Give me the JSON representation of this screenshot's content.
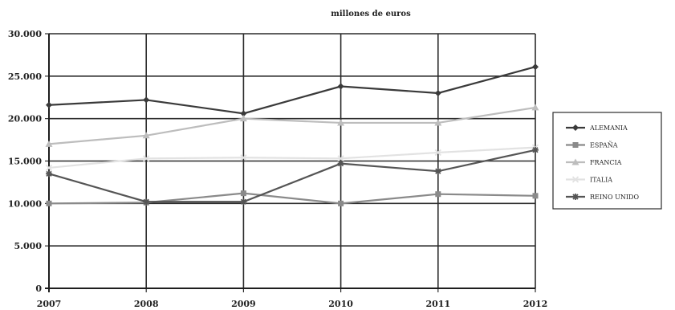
{
  "chart_data": {
    "type": "line",
    "title": "millones de euros",
    "xlabel": "",
    "ylabel": "",
    "x": [
      "2007",
      "2008",
      "2009",
      "2010",
      "2011",
      "2012"
    ],
    "ylim": [
      0,
      30000
    ],
    "yticks": [
      "0",
      "5.000",
      "10.000",
      "15.000",
      "20.000",
      "25.000",
      "30.000"
    ],
    "grid": true,
    "legend_position": "right",
    "series": [
      {
        "name": "ALEMANIA",
        "values": [
          21600,
          22200,
          20600,
          23800,
          23000,
          26100
        ],
        "color": "#3a3a3a",
        "marker": "diamond"
      },
      {
        "name": "ESPAÑA",
        "values": [
          10000,
          10100,
          11200,
          10000,
          11100,
          10900
        ],
        "color": "#8a8a8a",
        "marker": "square"
      },
      {
        "name": "FRANCIA",
        "values": [
          17000,
          18000,
          20000,
          19500,
          19500,
          21300
        ],
        "color": "#bdbdbd",
        "marker": "triangle"
      },
      {
        "name": "ITALIA",
        "values": [
          14200,
          15300,
          15400,
          15300,
          16000,
          16600
        ],
        "color": "#e2e2e2",
        "marker": "x"
      },
      {
        "name": "REINO UNIDO",
        "values": [
          13500,
          10200,
          10200,
          14700,
          13800,
          16300
        ],
        "color": "#555555",
        "marker": "star"
      }
    ]
  }
}
